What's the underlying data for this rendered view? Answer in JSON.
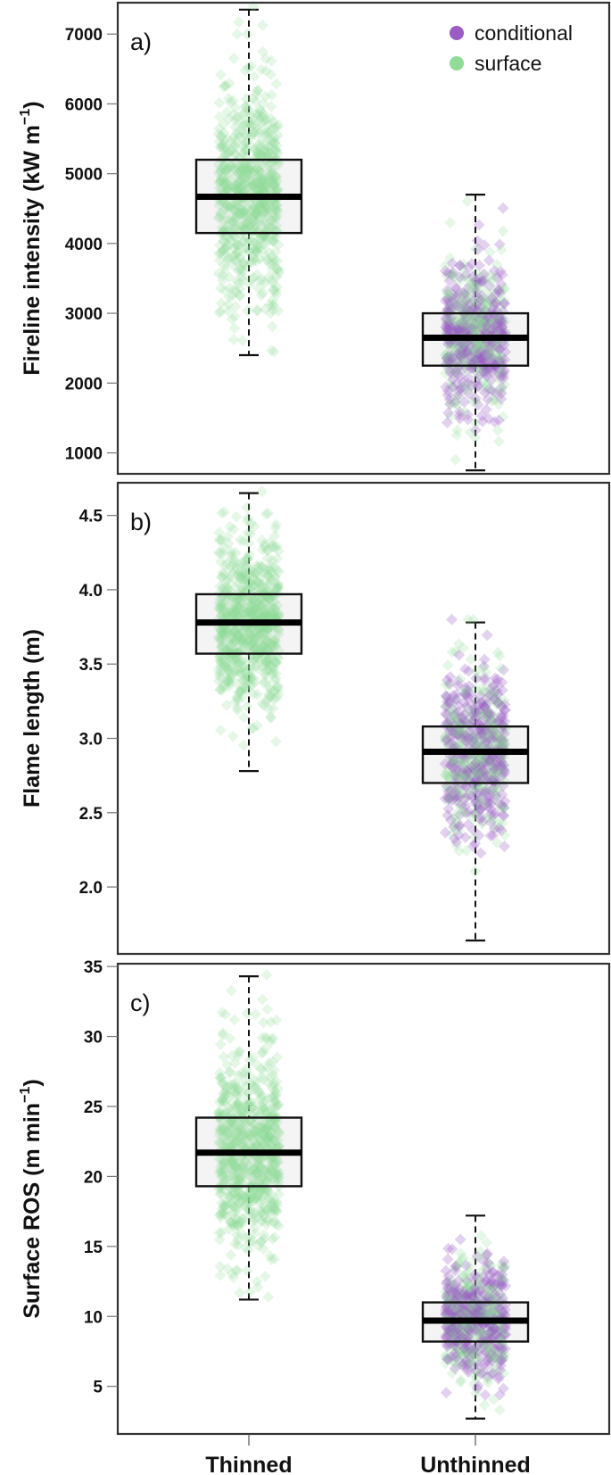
{
  "figure": {
    "legend": {
      "items": [
        {
          "label": "conditional",
          "color": "#9b5cc4"
        },
        {
          "label": "surface",
          "color": "#8fdc96"
        }
      ]
    },
    "categories": [
      "Thinned",
      "Unthinned"
    ]
  },
  "chart_data": [
    {
      "type": "box",
      "panel": "a)",
      "title": "",
      "xlabel": "",
      "ylabel": "Fireline intensity (kW m^-1)",
      "ylabel_main": "Fireline intensity (kW m",
      "ylabel_sup": "−1",
      "ylabel_close": ")",
      "yticks": [
        1000,
        2000,
        3000,
        4000,
        5000,
        6000,
        7000
      ],
      "ylim": [
        700,
        7450
      ],
      "categories": [
        "Thinned",
        "Unthinned"
      ],
      "boxes": [
        {
          "category": "Thinned",
          "whisker_low": 2400,
          "q1": 4150,
          "median": 4670,
          "q3": 5200,
          "whisker_high": 7350,
          "points": {
            "surface": 700,
            "conditional": 0
          },
          "point_range": [
            2400,
            7400
          ]
        },
        {
          "category": "Unthinned",
          "whisker_low": 750,
          "q1": 2250,
          "median": 2650,
          "q3": 3000,
          "whisker_high": 4700,
          "points": {
            "surface": 300,
            "conditional": 380
          },
          "point_range": [
            700,
            4700
          ]
        }
      ],
      "legend": [
        "conditional",
        "surface"
      ],
      "legend_position": "top-right",
      "grid": false
    },
    {
      "type": "box",
      "panel": "b)",
      "title": "",
      "xlabel": "",
      "ylabel": "Flame length (m)",
      "ylabel_main": "Flame length (m)",
      "ylabel_sup": "",
      "ylabel_close": "",
      "yticks": [
        2.0,
        2.5,
        3.0,
        3.5,
        4.0,
        4.5
      ],
      "ytick_labels": [
        "2.0",
        "2.5",
        "3.0",
        "3.5",
        "4.0",
        "4.5"
      ],
      "ylim": [
        1.55,
        4.72
      ],
      "categories": [
        "Thinned",
        "Unthinned"
      ],
      "boxes": [
        {
          "category": "Thinned",
          "whisker_low": 2.78,
          "q1": 3.57,
          "median": 3.78,
          "q3": 3.97,
          "whisker_high": 4.65,
          "points": {
            "surface": 700,
            "conditional": 0
          },
          "point_range": [
            2.78,
            4.67
          ]
        },
        {
          "category": "Unthinned",
          "whisker_low": 1.64,
          "q1": 2.7,
          "median": 2.91,
          "q3": 3.08,
          "whisker_high": 3.78,
          "points": {
            "surface": 300,
            "conditional": 380
          },
          "point_range": [
            1.64,
            3.8
          ]
        }
      ],
      "grid": false
    },
    {
      "type": "box",
      "panel": "c)",
      "title": "",
      "xlabel": "",
      "ylabel": "Surface ROS (m min^-1)",
      "ylabel_main": "Surface ROS (m min",
      "ylabel_sup": "−1",
      "ylabel_close": ")",
      "yticks": [
        5,
        10,
        15,
        20,
        25,
        30,
        35
      ],
      "ylim": [
        1.6,
        35.2
      ],
      "categories": [
        "Thinned",
        "Unthinned"
      ],
      "boxes": [
        {
          "category": "Thinned",
          "whisker_low": 11.2,
          "q1": 19.3,
          "median": 21.7,
          "q3": 24.2,
          "whisker_high": 34.3,
          "points": {
            "surface": 700,
            "conditional": 0
          },
          "point_range": [
            11.0,
            34.4
          ]
        },
        {
          "category": "Unthinned",
          "whisker_low": 2.7,
          "q1": 8.2,
          "median": 9.7,
          "q3": 11.0,
          "whisker_high": 17.2,
          "points": {
            "surface": 300,
            "conditional": 380
          },
          "point_range": [
            2.6,
            17.3
          ]
        }
      ],
      "grid": false
    }
  ]
}
